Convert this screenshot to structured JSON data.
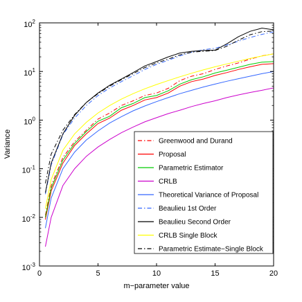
{
  "chart_data": {
    "type": "line",
    "xlabel": "m−parameter value",
    "ylabel": "Variance",
    "xlim": [
      0,
      20
    ],
    "ylim": [
      0.001,
      100
    ],
    "yscale": "log",
    "grid": false,
    "legend_position": "bottom-right",
    "x_ticks": [
      "0",
      "5",
      "10",
      "15",
      "20"
    ],
    "y_ticks": [
      {
        "base": "10",
        "exp": "-3"
      },
      {
        "base": "10",
        "exp": "-2"
      },
      {
        "base": "10",
        "exp": "-1"
      },
      {
        "base": "10",
        "exp": "0"
      },
      {
        "base": "10",
        "exp": "1"
      },
      {
        "base": "10",
        "exp": "2"
      }
    ],
    "x": [
      0.5,
      1,
      2,
      3,
      4,
      5,
      6,
      7,
      8,
      9,
      10,
      11,
      12,
      13,
      14,
      15,
      16,
      17,
      18,
      19,
      20
    ],
    "series": [
      {
        "name": "Greenwood and Durand",
        "color": "#ff0000",
        "dash": "dashdot",
        "values": [
          0.011,
          0.045,
          0.17,
          0.36,
          0.62,
          1.05,
          1.4,
          2.0,
          2.5,
          3.2,
          3.6,
          4.5,
          6.5,
          8.0,
          9.0,
          11.0,
          13.0,
          15.0,
          18.0,
          21.0,
          23.0
        ]
      },
      {
        "name": "Proposal",
        "color": "#ff0000",
        "dash": "solid",
        "values": [
          0.009,
          0.035,
          0.13,
          0.3,
          0.52,
          0.85,
          1.1,
          1.6,
          2.0,
          2.6,
          2.9,
          3.6,
          5.0,
          6.2,
          7.0,
          8.3,
          9.5,
          11.0,
          12.5,
          14.0,
          14.5
        ]
      },
      {
        "name": "Parametric Estimator",
        "color": "#00cc00",
        "dash": "solid",
        "values": [
          0.01,
          0.04,
          0.15,
          0.33,
          0.58,
          0.95,
          1.2,
          1.8,
          2.2,
          2.9,
          3.2,
          4.0,
          5.5,
          6.8,
          7.8,
          9.3,
          10.6,
          12.2,
          14.0,
          15.5,
          16.0
        ]
      },
      {
        "name": "CRLB",
        "color": "#cc00cc",
        "dash": "solid",
        "values": [
          0.0025,
          0.01,
          0.045,
          0.1,
          0.18,
          0.28,
          0.4,
          0.55,
          0.72,
          0.92,
          1.12,
          1.36,
          1.6,
          1.9,
          2.2,
          2.5,
          2.9,
          3.3,
          3.7,
          4.1,
          4.6
        ]
      },
      {
        "name": "Theoretical Variance of Proposal",
        "color": "#3366ff",
        "dash": "solid",
        "values": [
          0.006,
          0.025,
          0.1,
          0.22,
          0.39,
          0.6,
          0.87,
          1.18,
          1.55,
          1.95,
          2.4,
          2.9,
          3.5,
          4.1,
          4.8,
          5.5,
          6.3,
          7.1,
          8.0,
          9.0,
          10.0
        ]
      },
      {
        "name": "Beaulieu 1st Order",
        "color": "#3366ff",
        "dash": "dashdot",
        "values": [
          0.03,
          0.12,
          0.5,
          1.1,
          2.0,
          3.2,
          4.6,
          6.2,
          8.2,
          11.0,
          14.0,
          17.0,
          21.0,
          25.0,
          28.0,
          30.0,
          35.0,
          42.0,
          50.0,
          58.0,
          65.0
        ]
      },
      {
        "name": "Beaulieu Second Order",
        "color": "#000000",
        "dash": "solid",
        "values": [
          0.032,
          0.13,
          0.52,
          1.25,
          2.3,
          3.6,
          5.2,
          7.0,
          9.5,
          13.0,
          16.0,
          20.0,
          24.0,
          26.0,
          27.0,
          27.5,
          37.0,
          52.0,
          67.0,
          78.0,
          72.0
        ]
      },
      {
        "name": "CRLB Single Block",
        "color": "#ffff00",
        "dash": "solid",
        "values": [
          0.015,
          0.06,
          0.24,
          0.52,
          0.9,
          1.4,
          2.0,
          2.7,
          3.5,
          4.4,
          5.4,
          6.5,
          7.8,
          9.2,
          10.8,
          12.5,
          14.3,
          16.3,
          18.5,
          20.8,
          23.0
        ]
      },
      {
        "name": "Parametric Estimate−Single Block",
        "color": "#000000",
        "dash": "dashdot",
        "values": [
          0.05,
          0.2,
          0.62,
          1.3,
          2.3,
          3.5,
          5.0,
          6.8,
          9.0,
          12.0,
          15.0,
          18.0,
          22.0,
          25.0,
          26.0,
          27.0,
          33.0,
          44.0,
          57.0,
          66.0,
          68.0
        ]
      }
    ]
  }
}
